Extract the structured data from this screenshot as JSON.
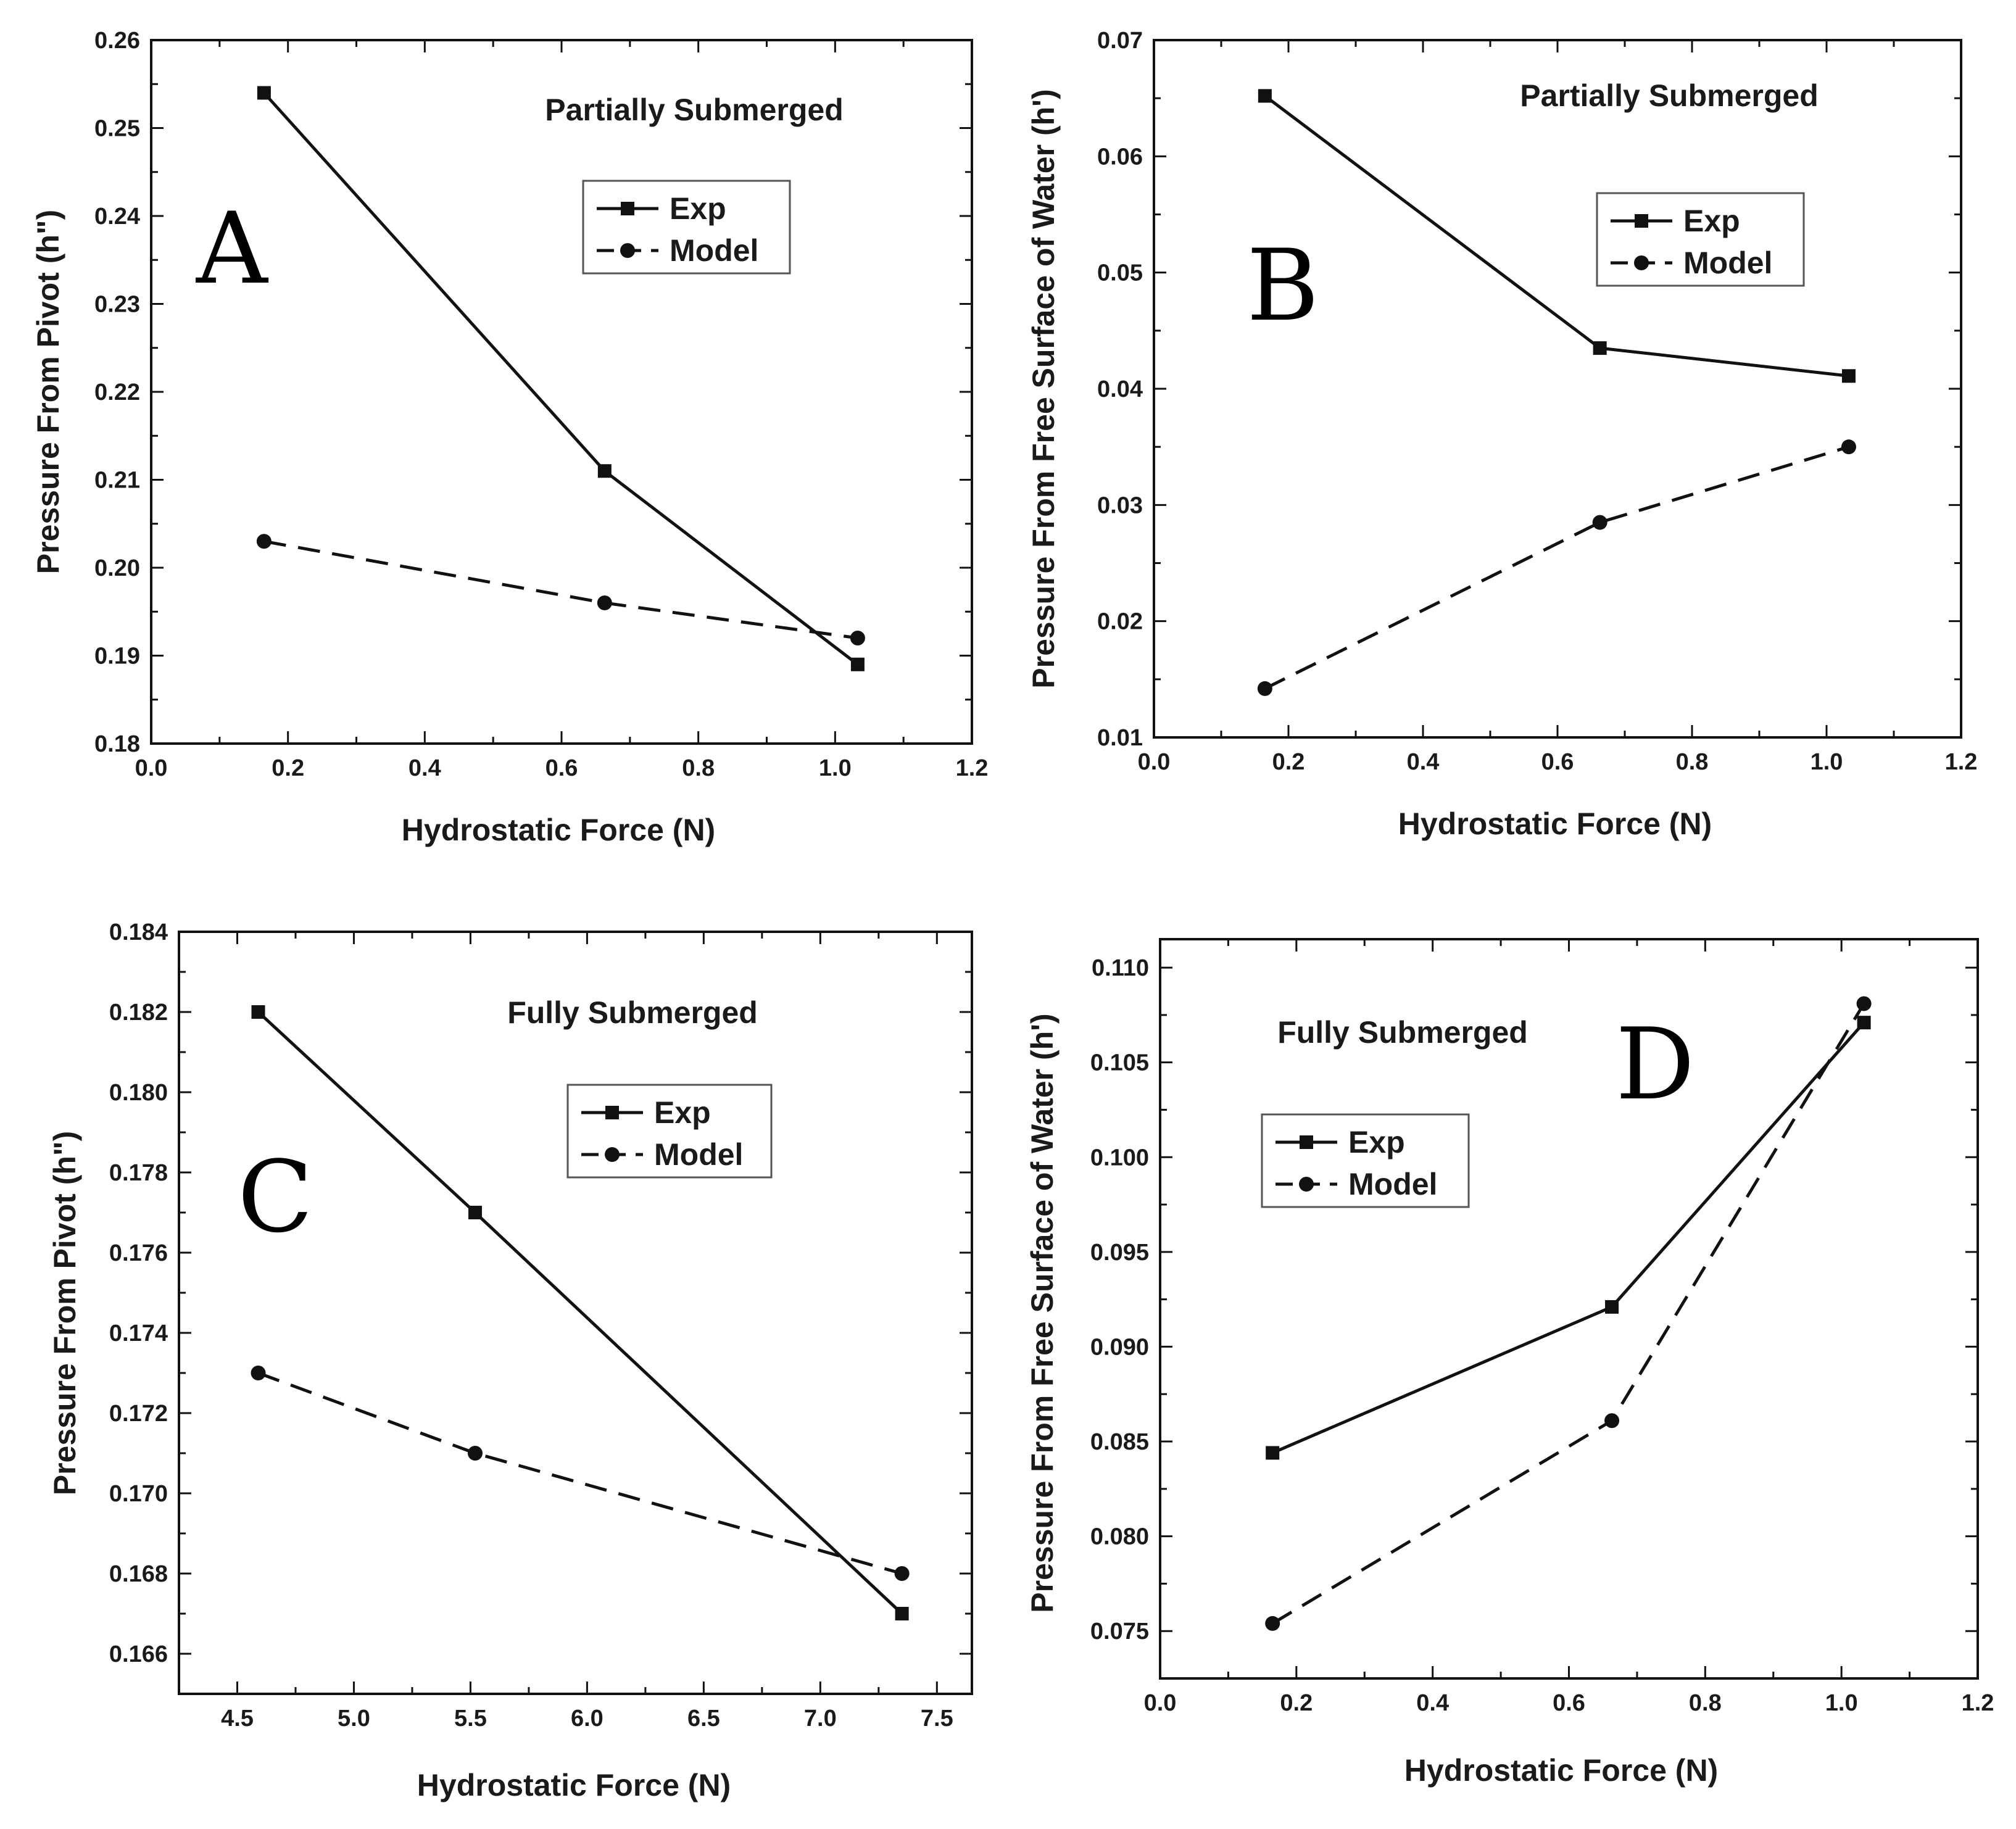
{
  "chart_data": [
    {
      "type": "line",
      "panel_label": "A",
      "annotation": "Partially Submerged",
      "xlabel": "Hydrostatic Force (N)",
      "ylabel": "Pressure From Pivot (h\")",
      "xlim": [
        0.0,
        1.2
      ],
      "ylim": [
        0.18,
        0.26
      ],
      "xticks": [
        0.0,
        0.2,
        0.4,
        0.6,
        0.8,
        1.0,
        1.2
      ],
      "yticks": [
        0.18,
        0.19,
        0.2,
        0.21,
        0.22,
        0.23,
        0.24,
        0.25,
        0.26
      ],
      "x_tick_labels": [
        "0.0",
        "0.2",
        "0.4",
        "0.6",
        "0.8",
        "1.0",
        "1.2"
      ],
      "y_tick_labels": [
        "0.18",
        "0.19",
        "0.20",
        "0.21",
        "0.22",
        "0.23",
        "0.24",
        "0.25",
        "0.26"
      ],
      "legend_position": "upper-right",
      "series": [
        {
          "name": "Exp",
          "style": "solid",
          "marker": "square",
          "x": [
            0.165,
            0.663,
            1.033
          ],
          "y": [
            0.254,
            0.211,
            0.189
          ]
        },
        {
          "name": "Model",
          "style": "dashed",
          "marker": "circle",
          "x": [
            0.165,
            0.663,
            1.033
          ],
          "y": [
            0.203,
            0.196,
            0.192
          ]
        }
      ]
    },
    {
      "type": "line",
      "panel_label": "B",
      "annotation": "Partially Submerged",
      "xlabel": "Hydrostatic Force (N)",
      "ylabel": "Pressure From Free Surface of Water (h')",
      "xlim": [
        0.0,
        1.2
      ],
      "ylim": [
        0.01,
        0.07
      ],
      "xticks": [
        0.0,
        0.2,
        0.4,
        0.6,
        0.8,
        1.0,
        1.2
      ],
      "yticks": [
        0.01,
        0.02,
        0.03,
        0.04,
        0.05,
        0.06,
        0.07
      ],
      "x_tick_labels": [
        "0.0",
        "0.2",
        "0.4",
        "0.6",
        "0.8",
        "1.0",
        "1.2"
      ],
      "y_tick_labels": [
        "0.01",
        "0.02",
        "0.03",
        "0.04",
        "0.05",
        "0.06",
        "0.07"
      ],
      "legend_position": "upper-right",
      "series": [
        {
          "name": "Exp",
          "style": "solid",
          "marker": "square",
          "x": [
            0.165,
            0.663,
            1.033
          ],
          "y": [
            0.0652,
            0.0435,
            0.0411
          ]
        },
        {
          "name": "Model",
          "style": "dashed",
          "marker": "circle",
          "x": [
            0.165,
            0.663,
            1.033
          ],
          "y": [
            0.0142,
            0.0285,
            0.035
          ]
        }
      ]
    },
    {
      "type": "line",
      "panel_label": "C",
      "annotation": "Fully Submerged",
      "xlabel": "Hydrostatic Force (N)",
      "ylabel": "Pressure From Pivot (h\")",
      "xlim": [
        4.25,
        7.65
      ],
      "ylim": [
        0.165,
        0.184
      ],
      "xticks": [
        4.5,
        5.0,
        5.5,
        6.0,
        6.5,
        7.0,
        7.5
      ],
      "yticks": [
        0.166,
        0.168,
        0.17,
        0.172,
        0.174,
        0.176,
        0.178,
        0.18,
        0.182,
        0.184
      ],
      "x_tick_labels": [
        "4.5",
        "5.0",
        "5.5",
        "6.0",
        "6.5",
        "7.0",
        "7.5"
      ],
      "y_tick_labels": [
        "0.166",
        "0.168",
        "0.170",
        "0.172",
        "0.174",
        "0.176",
        "0.178",
        "0.180",
        "0.182",
        "0.184"
      ],
      "legend_position": "upper-right",
      "series": [
        {
          "name": "Exp",
          "style": "solid",
          "marker": "square",
          "x": [
            4.59,
            5.52,
            7.35
          ],
          "y": [
            0.182,
            0.177,
            0.167
          ]
        },
        {
          "name": "Model",
          "style": "dashed",
          "marker": "circle",
          "x": [
            4.59,
            5.52,
            7.35
          ],
          "y": [
            0.173,
            0.171,
            0.168
          ]
        }
      ]
    },
    {
      "type": "line",
      "panel_label": "D",
      "annotation": "Fully Submerged",
      "xlabel": "Hydrostatic Force (N)",
      "ylabel": "Pressure From Free Surface of Water (h')",
      "xlim": [
        0.0,
        1.2
      ],
      "ylim": [
        0.0725,
        0.1115
      ],
      "xticks": [
        0.0,
        0.2,
        0.4,
        0.6,
        0.8,
        1.0,
        1.2
      ],
      "yticks": [
        0.075,
        0.08,
        0.085,
        0.09,
        0.095,
        0.1,
        0.105,
        0.11
      ],
      "x_tick_labels": [
        "0.0",
        "0.2",
        "0.4",
        "0.6",
        "0.8",
        "1.0",
        "1.2"
      ],
      "y_tick_labels": [
        "0.075",
        "0.080",
        "0.085",
        "0.090",
        "0.095",
        "0.100",
        "0.105",
        "0.110"
      ],
      "legend_position": "upper-left",
      "series": [
        {
          "name": "Exp",
          "style": "solid",
          "marker": "square",
          "x": [
            0.165,
            0.663,
            1.033
          ],
          "y": [
            0.0844,
            0.0921,
            0.1071
          ]
        },
        {
          "name": "Model",
          "style": "dashed",
          "marker": "circle",
          "x": [
            0.165,
            0.663,
            1.033
          ],
          "y": [
            0.0754,
            0.0861,
            0.1081
          ]
        }
      ]
    }
  ]
}
